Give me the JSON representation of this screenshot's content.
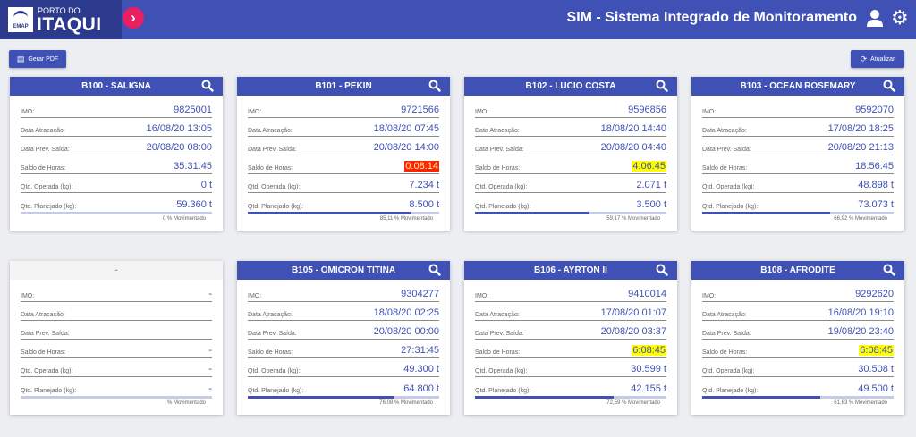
{
  "header": {
    "logo_small": "PORTO DO",
    "logo_big": "ITAQUI",
    "logo_seal": "EMAP",
    "title": "SIM - Sistema Integrado de Monitoramento"
  },
  "toolbar": {
    "pdf_label": "Gerar PDF",
    "refresh_label": "Atualizar"
  },
  "labels": {
    "imo": "IMO:",
    "atracacao": "Data Atracação:",
    "prev_saida": "Data Prev. Saída:",
    "saldo": "Saldo de Horas:",
    "operada": "Qtd. Operada (kg):",
    "planejado": "Qtd. Planejado (kg):"
  },
  "berths": [
    {
      "title": "B100 - SALIGNA",
      "imo": "9825001",
      "atracacao": "16/08/20 13:05",
      "prev_saida": "20/08/20 08:00",
      "saldo": "35:31:45",
      "saldo_hl": "",
      "operada": "0 t",
      "planejado": "59.360 t",
      "movimentado": "0 % Movimentado",
      "progress": 0
    },
    {
      "title": "B101 - PEKIN",
      "imo": "9721566",
      "atracacao": "18/08/20 07:45",
      "prev_saida": "20/08/20 14:00",
      "saldo": "0:08:14",
      "saldo_hl": "red",
      "operada": "7.234 t",
      "planejado": "8.500 t",
      "movimentado": "85,11 % Movimentado",
      "progress": 85.11
    },
    {
      "title": "B102 - LUCIO COSTA",
      "imo": "9596856",
      "atracacao": "18/08/20 14:40",
      "prev_saida": "20/08/20 04:40",
      "saldo": "4:06:45",
      "saldo_hl": "yellow",
      "operada": "2.071 t",
      "planejado": "3.500 t",
      "movimentado": "59,17 % Movimentado",
      "progress": 59.17
    },
    {
      "title": "B103 - OCEAN ROSEMARY",
      "imo": "9592070",
      "atracacao": "17/08/20 18:25",
      "prev_saida": "20/08/20 21:13",
      "saldo": "18:56:45",
      "saldo_hl": "",
      "operada": "48.898 t",
      "planejado": "73.073 t",
      "movimentado": "66,92 % Movimentado",
      "progress": 66.92
    },
    {
      "title": "-",
      "empty": true,
      "imo": "-",
      "atracacao": "",
      "prev_saida": "",
      "saldo": "-",
      "saldo_hl": "",
      "operada": "-",
      "planejado": "-",
      "movimentado": "% Movimentado",
      "progress": 0
    },
    {
      "title": "B105 - OMICRON TITINA",
      "imo": "9304277",
      "atracacao": "18/08/20 02:25",
      "prev_saida": "20/08/20 00:00",
      "saldo": "27:31:45",
      "saldo_hl": "",
      "operada": "49.300 t",
      "planejado": "64.800 t",
      "movimentado": "76,08 % Movimentado",
      "progress": 76.08
    },
    {
      "title": "B106 - AYRTON II",
      "imo": "9410014",
      "atracacao": "17/08/20 01:07",
      "prev_saida": "20/08/20 03:37",
      "saldo": "6:08:45",
      "saldo_hl": "yellow",
      "operada": "30.599 t",
      "planejado": "42.155 t",
      "movimentado": "72,59 % Movimentado",
      "progress": 72.59
    },
    {
      "title": "B108 - AFRODITE",
      "imo": "9292620",
      "atracacao": "16/08/20 19:10",
      "prev_saida": "19/08/20 23:40",
      "saldo": "6:08:45",
      "saldo_hl": "yellow",
      "operada": "30.508 t",
      "planejado": "49.500 t",
      "movimentado": "61,63 % Movimentado",
      "progress": 61.63
    }
  ]
}
